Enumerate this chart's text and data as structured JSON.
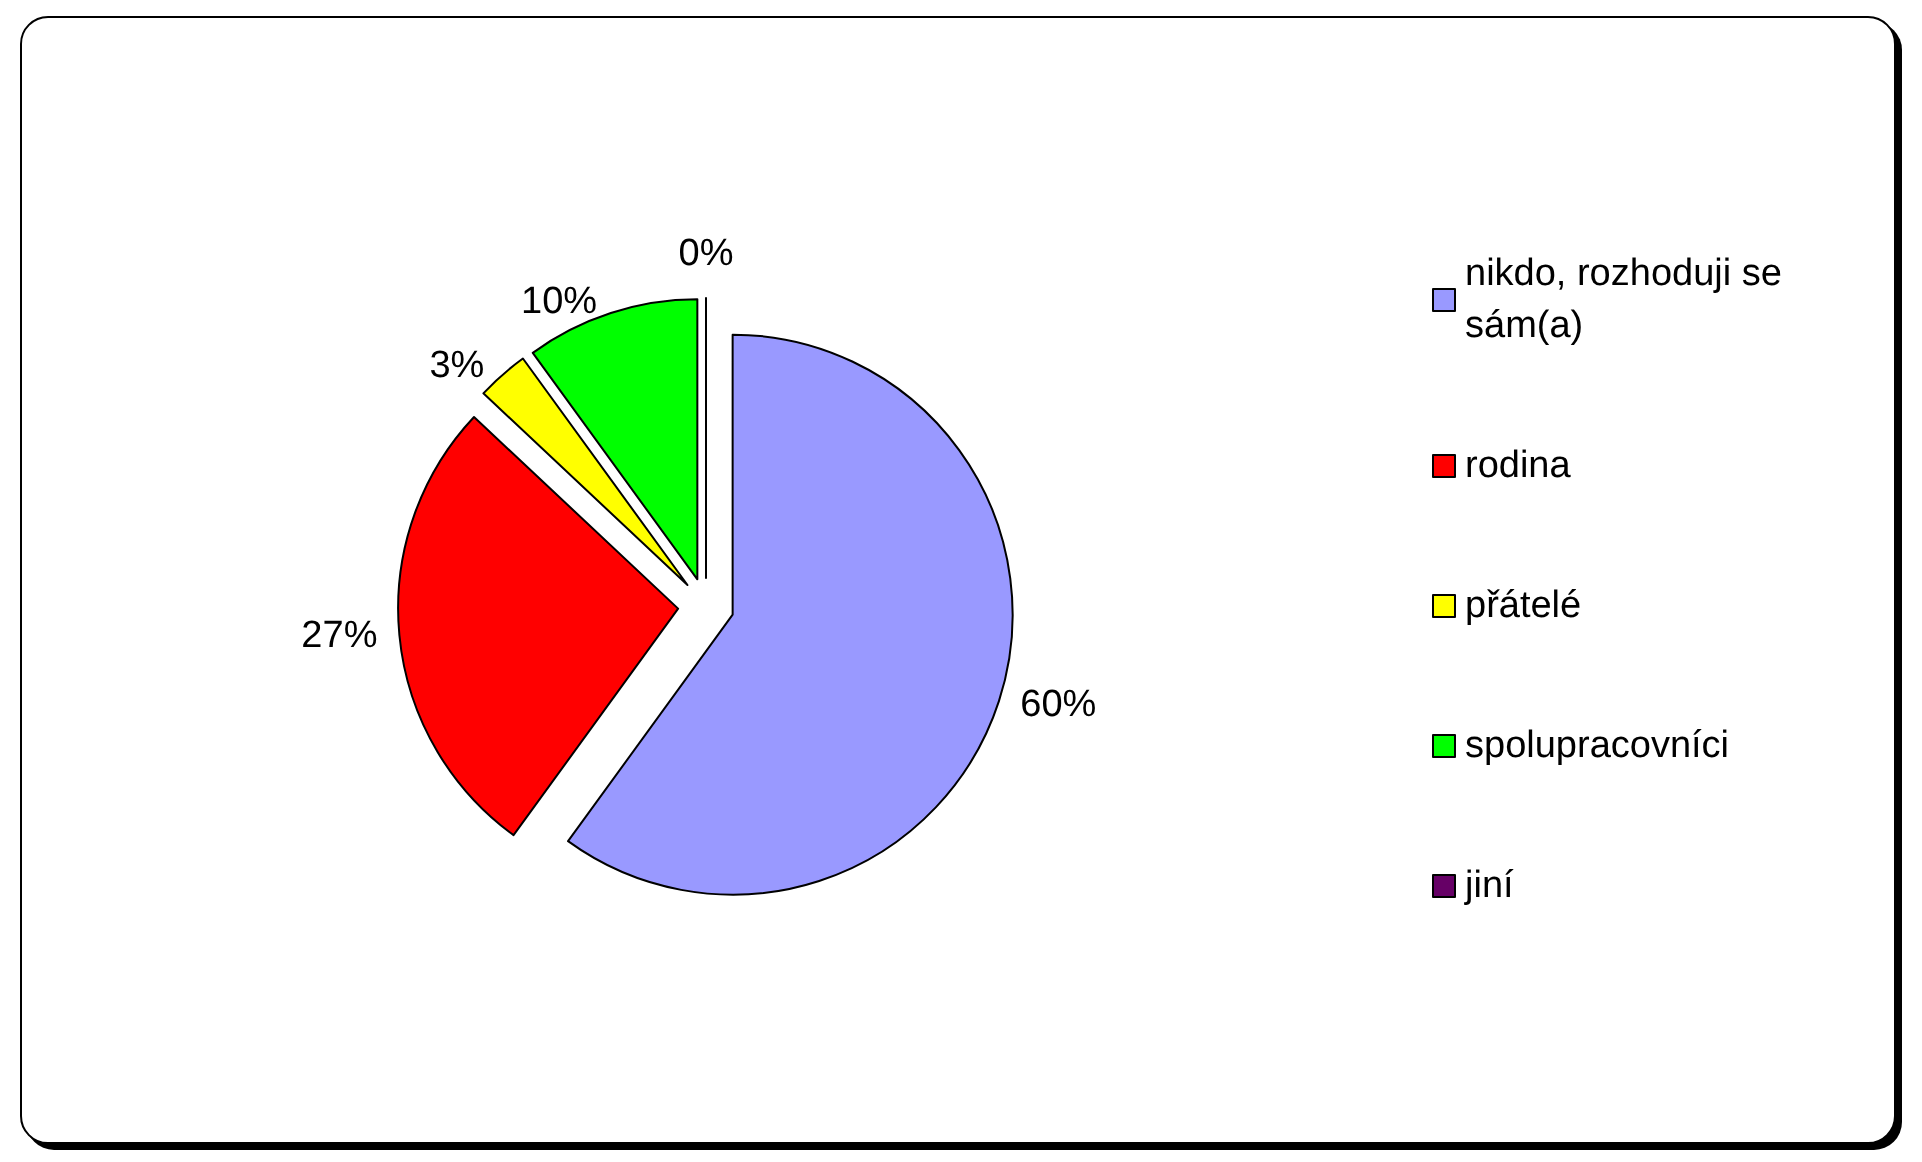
{
  "chart_data": {
    "type": "pie",
    "categories": [
      "nikdo, rozhoduji se sám(a)",
      "rodina",
      "přátelé",
      "spolupracovníci",
      "jiní"
    ],
    "values": [
      60,
      27,
      3,
      10,
      0
    ],
    "colors": [
      "#9999ff",
      "#ff0000",
      "#ffff00",
      "#00ff00",
      "#660066"
    ],
    "value_labels": [
      "60%",
      "27%",
      "3%",
      "10%",
      "0%"
    ],
    "legend": "right"
  }
}
